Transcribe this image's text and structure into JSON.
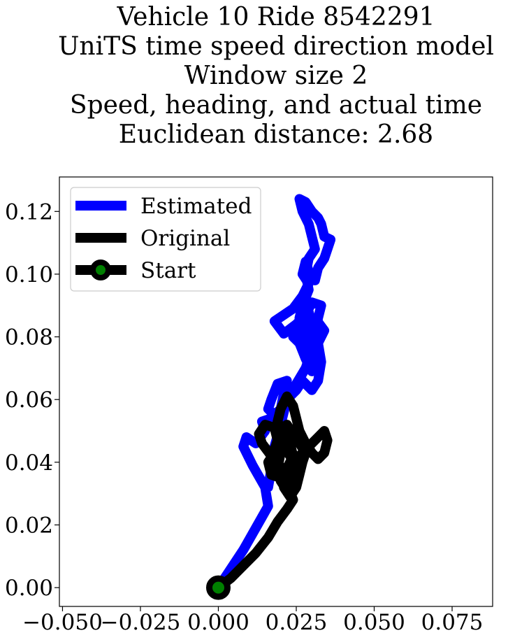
{
  "chart_data": {
    "type": "line",
    "title_lines": [
      "Vehicle 10 Ride 8542291",
      "UniTS time speed direction model",
      "Window size 2",
      "Speed, heading, and actual time",
      "Euclidean distance: 2.68"
    ],
    "xlabel": "",
    "ylabel": "",
    "xlim": [
      -0.051,
      0.088
    ],
    "ylim": [
      -0.006,
      0.131
    ],
    "x_ticks": [
      -0.05,
      -0.025,
      0.0,
      0.025,
      0.05,
      0.075
    ],
    "x_tick_labels": [
      "−0.050",
      "−0.025",
      "0.000",
      "0.025",
      "0.050",
      "0.075"
    ],
    "y_ticks": [
      0.0,
      0.02,
      0.04,
      0.06,
      0.08,
      0.1,
      0.12
    ],
    "y_tick_labels": [
      "0.00",
      "0.02",
      "0.04",
      "0.06",
      "0.08",
      "0.10",
      "0.12"
    ],
    "grid": false,
    "legend": {
      "position": "upper-left",
      "entries": [
        "Estimated",
        "Original",
        "Start"
      ]
    },
    "series": [
      {
        "name": "Estimated",
        "color": "#0000ff",
        "points": [
          [
            0.0,
            0.0
          ],
          [
            0.004,
            0.006
          ],
          [
            0.008,
            0.012
          ],
          [
            0.012,
            0.019
          ],
          [
            0.016,
            0.026
          ],
          [
            0.015,
            0.032
          ],
          [
            0.011,
            0.039
          ],
          [
            0.008,
            0.045
          ],
          [
            0.009,
            0.048
          ],
          [
            0.012,
            0.046
          ],
          [
            0.015,
            0.05
          ],
          [
            0.014,
            0.053
          ],
          [
            0.017,
            0.054
          ],
          [
            0.02,
            0.057
          ],
          [
            0.021,
            0.062
          ],
          [
            0.022,
            0.066
          ],
          [
            0.019,
            0.065
          ],
          [
            0.017,
            0.06
          ],
          [
            0.016,
            0.057
          ],
          [
            0.018,
            0.055
          ],
          [
            0.021,
            0.058
          ],
          [
            0.023,
            0.061
          ],
          [
            0.025,
            0.063
          ],
          [
            0.027,
            0.066
          ],
          [
            0.03,
            0.063
          ],
          [
            0.032,
            0.066
          ],
          [
            0.033,
            0.072
          ],
          [
            0.032,
            0.078
          ],
          [
            0.034,
            0.082
          ],
          [
            0.031,
            0.086
          ],
          [
            0.028,
            0.085
          ],
          [
            0.027,
            0.08
          ],
          [
            0.029,
            0.077
          ],
          [
            0.031,
            0.08
          ],
          [
            0.032,
            0.074
          ],
          [
            0.03,
            0.069
          ],
          [
            0.028,
            0.073
          ],
          [
            0.026,
            0.078
          ],
          [
            0.024,
            0.08
          ],
          [
            0.027,
            0.083
          ],
          [
            0.029,
            0.088
          ],
          [
            0.03,
            0.084
          ],
          [
            0.031,
            0.079
          ],
          [
            0.032,
            0.086
          ],
          [
            0.033,
            0.09
          ],
          [
            0.03,
            0.091
          ],
          [
            0.028,
            0.087
          ],
          [
            0.025,
            0.084
          ],
          [
            0.021,
            0.081
          ],
          [
            0.018,
            0.085
          ],
          [
            0.021,
            0.087
          ],
          [
            0.024,
            0.089
          ],
          [
            0.027,
            0.093
          ],
          [
            0.029,
            0.097
          ],
          [
            0.027,
            0.1
          ],
          [
            0.028,
            0.104
          ],
          [
            0.029,
            0.101
          ],
          [
            0.031,
            0.098
          ],
          [
            0.032,
            0.102
          ],
          [
            0.034,
            0.105
          ],
          [
            0.035,
            0.108
          ],
          [
            0.036,
            0.111
          ],
          [
            0.034,
            0.112
          ],
          [
            0.033,
            0.116
          ],
          [
            0.032,
            0.118
          ],
          [
            0.03,
            0.12
          ],
          [
            0.028,
            0.123
          ],
          [
            0.026,
            0.124
          ],
          [
            0.027,
            0.12
          ],
          [
            0.029,
            0.116
          ],
          [
            0.03,
            0.112
          ],
          [
            0.031,
            0.108
          ],
          [
            0.029,
            0.105
          ],
          [
            0.028,
            0.1
          ],
          [
            0.029,
            0.095
          ],
          [
            0.027,
            0.09
          ],
          [
            0.026,
            0.086
          ],
          [
            0.028,
            0.082
          ],
          [
            0.03,
            0.076
          ],
          [
            0.028,
            0.07
          ],
          [
            0.025,
            0.065
          ],
          [
            0.022,
            0.06
          ],
          [
            0.02,
            0.052
          ],
          [
            0.018,
            0.045
          ],
          [
            0.017,
            0.038
          ],
          [
            0.016,
            0.032
          ]
        ]
      },
      {
        "name": "Original",
        "color": "#000000",
        "points": [
          [
            0.0,
            0.0
          ],
          [
            0.004,
            0.003
          ],
          [
            0.008,
            0.007
          ],
          [
            0.012,
            0.011
          ],
          [
            0.016,
            0.016
          ],
          [
            0.019,
            0.021
          ],
          [
            0.022,
            0.025
          ],
          [
            0.024,
            0.028
          ],
          [
            0.022,
            0.033
          ],
          [
            0.02,
            0.038
          ],
          [
            0.017,
            0.042
          ],
          [
            0.014,
            0.046
          ],
          [
            0.013,
            0.049
          ],
          [
            0.015,
            0.052
          ],
          [
            0.018,
            0.051
          ],
          [
            0.019,
            0.047
          ],
          [
            0.018,
            0.043
          ],
          [
            0.016,
            0.04
          ],
          [
            0.017,
            0.036
          ],
          [
            0.02,
            0.035
          ],
          [
            0.022,
            0.038
          ],
          [
            0.024,
            0.042
          ],
          [
            0.023,
            0.046
          ],
          [
            0.021,
            0.049
          ],
          [
            0.019,
            0.053
          ],
          [
            0.02,
            0.057
          ],
          [
            0.022,
            0.061
          ],
          [
            0.024,
            0.058
          ],
          [
            0.025,
            0.054
          ],
          [
            0.026,
            0.05
          ],
          [
            0.028,
            0.046
          ],
          [
            0.03,
            0.043
          ],
          [
            0.032,
            0.041
          ],
          [
            0.034,
            0.043
          ],
          [
            0.035,
            0.047
          ],
          [
            0.034,
            0.05
          ],
          [
            0.032,
            0.048
          ],
          [
            0.029,
            0.045
          ],
          [
            0.026,
            0.042
          ],
          [
            0.024,
            0.039
          ],
          [
            0.022,
            0.036
          ],
          [
            0.021,
            0.032
          ],
          [
            0.023,
            0.029
          ],
          [
            0.025,
            0.032
          ],
          [
            0.026,
            0.036
          ],
          [
            0.027,
            0.04
          ],
          [
            0.028,
            0.043
          ],
          [
            0.026,
            0.046
          ],
          [
            0.024,
            0.049
          ],
          [
            0.022,
            0.052
          ],
          [
            0.021,
            0.048
          ],
          [
            0.02,
            0.043
          ],
          [
            0.019,
            0.038
          ],
          [
            0.02,
            0.034
          ],
          [
            0.022,
            0.031
          ],
          [
            0.024,
            0.034
          ],
          [
            0.025,
            0.038
          ],
          [
            0.023,
            0.042
          ],
          [
            0.021,
            0.045
          ],
          [
            0.019,
            0.047
          ],
          [
            0.018,
            0.044
          ],
          [
            0.019,
            0.04
          ],
          [
            0.021,
            0.037
          ],
          [
            0.023,
            0.036
          ]
        ]
      }
    ],
    "start_point": {
      "name": "Start",
      "x": 0.0,
      "y": 0.0,
      "marker_color": "#008000",
      "edge_color": "#000000"
    }
  }
}
